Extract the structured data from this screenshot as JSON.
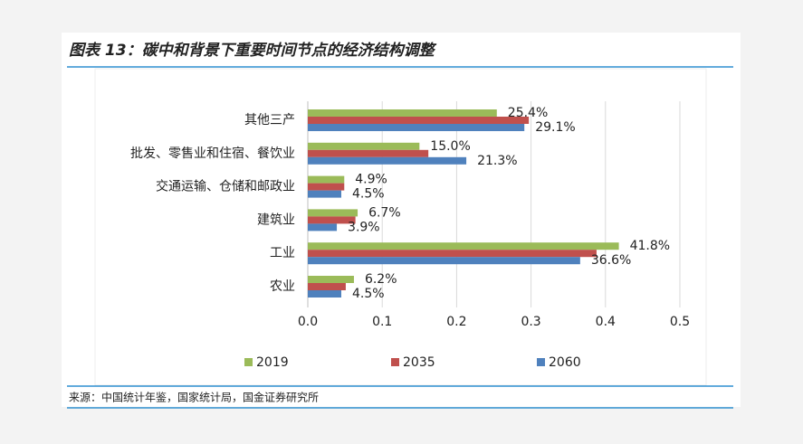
{
  "chart_data": {
    "type": "bar",
    "orientation": "horizontal",
    "title": "图表 13：碳中和背景下重要时间节点的经济结构调整",
    "source": "来源：中国统计年鉴，国家统计局，国金证券研究所",
    "categories": [
      "其他三产",
      "批发、零售业和住宿、餐饮业",
      "交通运输、仓储和邮政业",
      "建筑业",
      "工业",
      "农业"
    ],
    "series": [
      {
        "name": "2019",
        "color": "#9bbb59",
        "values": [
          0.254,
          0.15,
          0.049,
          0.067,
          0.418,
          0.062
        ],
        "value_labels": [
          "25.4%",
          "15.0%",
          "4.9%",
          "6.7%",
          "41.8%",
          "6.2%"
        ]
      },
      {
        "name": "2035",
        "color": "#c0504d",
        "values": [
          0.297,
          0.162,
          0.049,
          0.064,
          0.388,
          0.051
        ]
      },
      {
        "name": "2060",
        "color": "#4f81bd",
        "values": [
          0.291,
          0.213,
          0.045,
          0.039,
          0.366,
          0.045
        ],
        "value_labels": [
          "29.1%",
          "21.3%",
          "4.5%",
          "3.9%",
          "36.6%",
          "4.5%"
        ]
      }
    ],
    "xlim": [
      0,
      0.5
    ],
    "xticks": [
      {
        "value": 0,
        "label": "0.0"
      },
      0.1,
      0.2,
      0.3,
      0.4,
      0.5
    ],
    "grid": true,
    "legend": "bottom"
  }
}
